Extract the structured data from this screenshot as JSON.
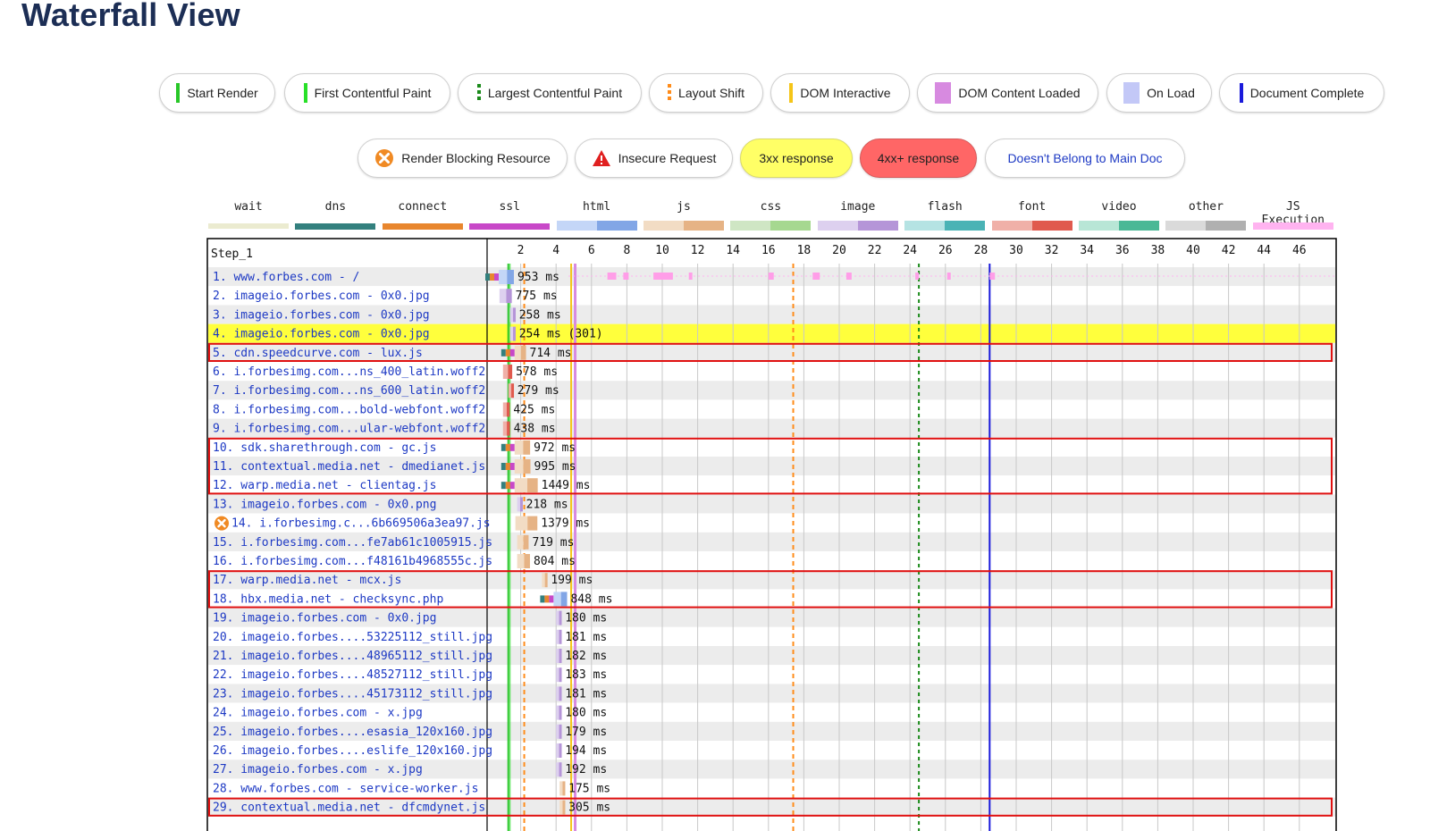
{
  "page": {
    "title": "Waterfall View"
  },
  "legend_markers": [
    {
      "label": "Start Render",
      "mark": "bar",
      "color": "#28c728"
    },
    {
      "label": "First Contentful Paint",
      "mark": "bar",
      "color": "#28e028"
    },
    {
      "label": "Largest Contentful Paint",
      "mark": "dashed",
      "color": "#1a8a1a"
    },
    {
      "label": "Layout Shift",
      "mark": "dashed",
      "color": "#ff8c1a"
    },
    {
      "label": "DOM Interactive",
      "mark": "bar",
      "color": "#f5c518"
    },
    {
      "label": "DOM Content Loaded",
      "mark": "block",
      "color": "#d78ae0"
    },
    {
      "label": "On Load",
      "mark": "block",
      "color": "#c3c8f7"
    },
    {
      "label": "Document Complete",
      "mark": "bar",
      "color": "#1a1adb"
    }
  ],
  "legend_status": [
    {
      "label": "Render Blocking Resource",
      "icon": "render-blocking-icon"
    },
    {
      "label": "Insecure Request",
      "icon": "warning-icon"
    },
    {
      "label": "3xx response",
      "style": "yellow"
    },
    {
      "label": "4xx+ response",
      "style": "red"
    },
    {
      "label": "Doesn't Belong to Main Doc",
      "style": "blue"
    }
  ],
  "legend_types": [
    {
      "label": "wait",
      "light": "#ebebd0",
      "dark": "#d9d9b9"
    },
    {
      "label": "dns",
      "light": "#33807e",
      "dark": "#1a6b69"
    },
    {
      "label": "connect",
      "light": "#e8862e",
      "dark": "#e07a1e"
    },
    {
      "label": "ssl",
      "light": "#c848c8",
      "dark": "#b530b5"
    },
    {
      "label": "html",
      "light": "#c4d6f7",
      "dark": "#82a6e6"
    },
    {
      "label": "js",
      "light": "#f2dcc4",
      "dark": "#e6b385"
    },
    {
      "label": "css",
      "light": "#cfe6c4",
      "dark": "#a6d890"
    },
    {
      "label": "image",
      "light": "#ddd0ef",
      "dark": "#b595d8"
    },
    {
      "label": "flash",
      "light": "#b5e3e3",
      "dark": "#4ab3b5"
    },
    {
      "label": "font",
      "light": "#f0b0a8",
      "dark": "#e05a4e"
    },
    {
      "label": "video",
      "light": "#b8e6d6",
      "dark": "#4ab896"
    },
    {
      "label": "other",
      "light": "#dadada",
      "dark": "#b0b0b0"
    },
    {
      "label": "JS Execution",
      "light": "#ffb3f0",
      "dark": "#ffb3f0"
    }
  ],
  "chart_data": {
    "type": "waterfall",
    "step_label": "Step_1",
    "x_unit": "seconds",
    "x_range": [
      0,
      48
    ],
    "x_ticks": [
      2,
      4,
      6,
      8,
      10,
      12,
      14,
      16,
      18,
      20,
      22,
      24,
      26,
      28,
      30,
      32,
      34,
      36,
      38,
      40,
      42,
      44,
      46
    ],
    "markers": {
      "start_render": 1.3,
      "first_contentful_paint": 1.35,
      "layout_shift_1": 2.2,
      "layout_shift_2": 17.4,
      "largest_contentful_paint": 24.5,
      "dom_interactive": 4.8,
      "dom_content_loaded": 4.9,
      "document_complete": 28.5
    },
    "rows": [
      {
        "label": "1. www.forbes.com - /",
        "start": 0.0,
        "type": "html",
        "duration_label": "953 ms",
        "js_exec": true
      },
      {
        "label": "2. imageio.forbes.com - 0x0.jpg",
        "start": 0.8,
        "type": "image",
        "duration_label": "775 ms"
      },
      {
        "label": "3. imageio.forbes.com - 0x0.jpg",
        "start": 1.4,
        "type": "image",
        "duration_label": "258 ms"
      },
      {
        "label": "4. imageio.forbes.com - 0x0.jpg",
        "start": 1.4,
        "type": "image",
        "duration_label": "254 ms (301)",
        "status": "3xx"
      },
      {
        "label": "5. cdn.speedcurve.com - lux.js",
        "start": 0.9,
        "type": "js",
        "duration_label": "714 ms",
        "highlight": true
      },
      {
        "label": "6. i.forbesimg.com...ns_400_latin.woff2",
        "start": 1.0,
        "type": "font",
        "duration_label": "578 ms"
      },
      {
        "label": "7. i.forbesimg.com...ns_600_latin.woff2",
        "start": 1.3,
        "type": "font",
        "duration_label": "279 ms"
      },
      {
        "label": "8. i.forbesimg.com...bold-webfont.woff2",
        "start": 1.0,
        "type": "font",
        "duration_label": "425 ms"
      },
      {
        "label": "9. i.forbesimg.com...ular-webfont.woff2",
        "start": 1.0,
        "type": "font",
        "duration_label": "438 ms"
      },
      {
        "label": "10. sdk.sharethrough.com - gc.js",
        "start": 0.9,
        "type": "js",
        "duration_label": "972 ms",
        "highlight": true
      },
      {
        "label": "11. contextual.media.net - dmedianet.js",
        "start": 0.9,
        "type": "js",
        "duration_label": "995 ms",
        "highlight": true
      },
      {
        "label": "12. warp.media.net - clientag.js",
        "start": 0.9,
        "type": "js",
        "duration_label": "1449 ms",
        "highlight": true
      },
      {
        "label": "13. imageio.forbes.com - 0x0.png",
        "start": 1.8,
        "type": "image",
        "duration_label": "218 ms"
      },
      {
        "label": "14. i.forbesimg.c...6b669506a3ea97.js",
        "start": 1.7,
        "type": "js",
        "duration_label": "1379 ms",
        "render_blocking": true
      },
      {
        "label": "15. i.forbesimg.com...fe7ab61c1005915.js",
        "start": 1.8,
        "type": "js",
        "duration_label": "719 ms"
      },
      {
        "label": "16. i.forbesimg.com...f48161b4968555c.js",
        "start": 1.8,
        "type": "js",
        "duration_label": "804 ms"
      },
      {
        "label": "17. warp.media.net - mcx.js",
        "start": 3.2,
        "type": "js",
        "duration_label": "199 ms",
        "highlight": true
      },
      {
        "label": "18. hbx.media.net - checksync.php",
        "start": 3.1,
        "type": "html",
        "duration_label": "848 ms",
        "highlight": true
      },
      {
        "label": "19. imageio.forbes.com - 0x0.jpg",
        "start": 4.0,
        "type": "image",
        "duration_label": "180 ms"
      },
      {
        "label": "20. imageio.forbes....53225112_still.jpg",
        "start": 4.0,
        "type": "image",
        "duration_label": "181 ms"
      },
      {
        "label": "21. imageio.forbes....48965112_still.jpg",
        "start": 4.0,
        "type": "image",
        "duration_label": "182 ms"
      },
      {
        "label": "22. imageio.forbes....48527112_still.jpg",
        "start": 4.0,
        "type": "image",
        "duration_label": "183 ms"
      },
      {
        "label": "23. imageio.forbes....45173112_still.jpg",
        "start": 4.0,
        "type": "image",
        "duration_label": "181 ms"
      },
      {
        "label": "24. imageio.forbes.com - x.jpg",
        "start": 4.0,
        "type": "image",
        "duration_label": "180 ms"
      },
      {
        "label": "25. imageio.forbes....esasia_120x160.jpg",
        "start": 4.0,
        "type": "image",
        "duration_label": "179 ms"
      },
      {
        "label": "26. imageio.forbes....eslife_120x160.jpg",
        "start": 4.0,
        "type": "image",
        "duration_label": "194 ms"
      },
      {
        "label": "27. imageio.forbes.com - x.jpg",
        "start": 4.0,
        "type": "image",
        "duration_label": "192 ms"
      },
      {
        "label": "28. www.forbes.com - service-worker.js",
        "start": 4.2,
        "type": "js",
        "duration_label": "175 ms"
      },
      {
        "label": "29. contextual.media.net - dfcmdynet.js",
        "start": 4.2,
        "type": "js",
        "duration_label": "305 ms",
        "highlight": true
      }
    ],
    "highlight_groups": [
      [
        5,
        5
      ],
      [
        10,
        12
      ],
      [
        17,
        18
      ],
      [
        29,
        29
      ]
    ]
  }
}
